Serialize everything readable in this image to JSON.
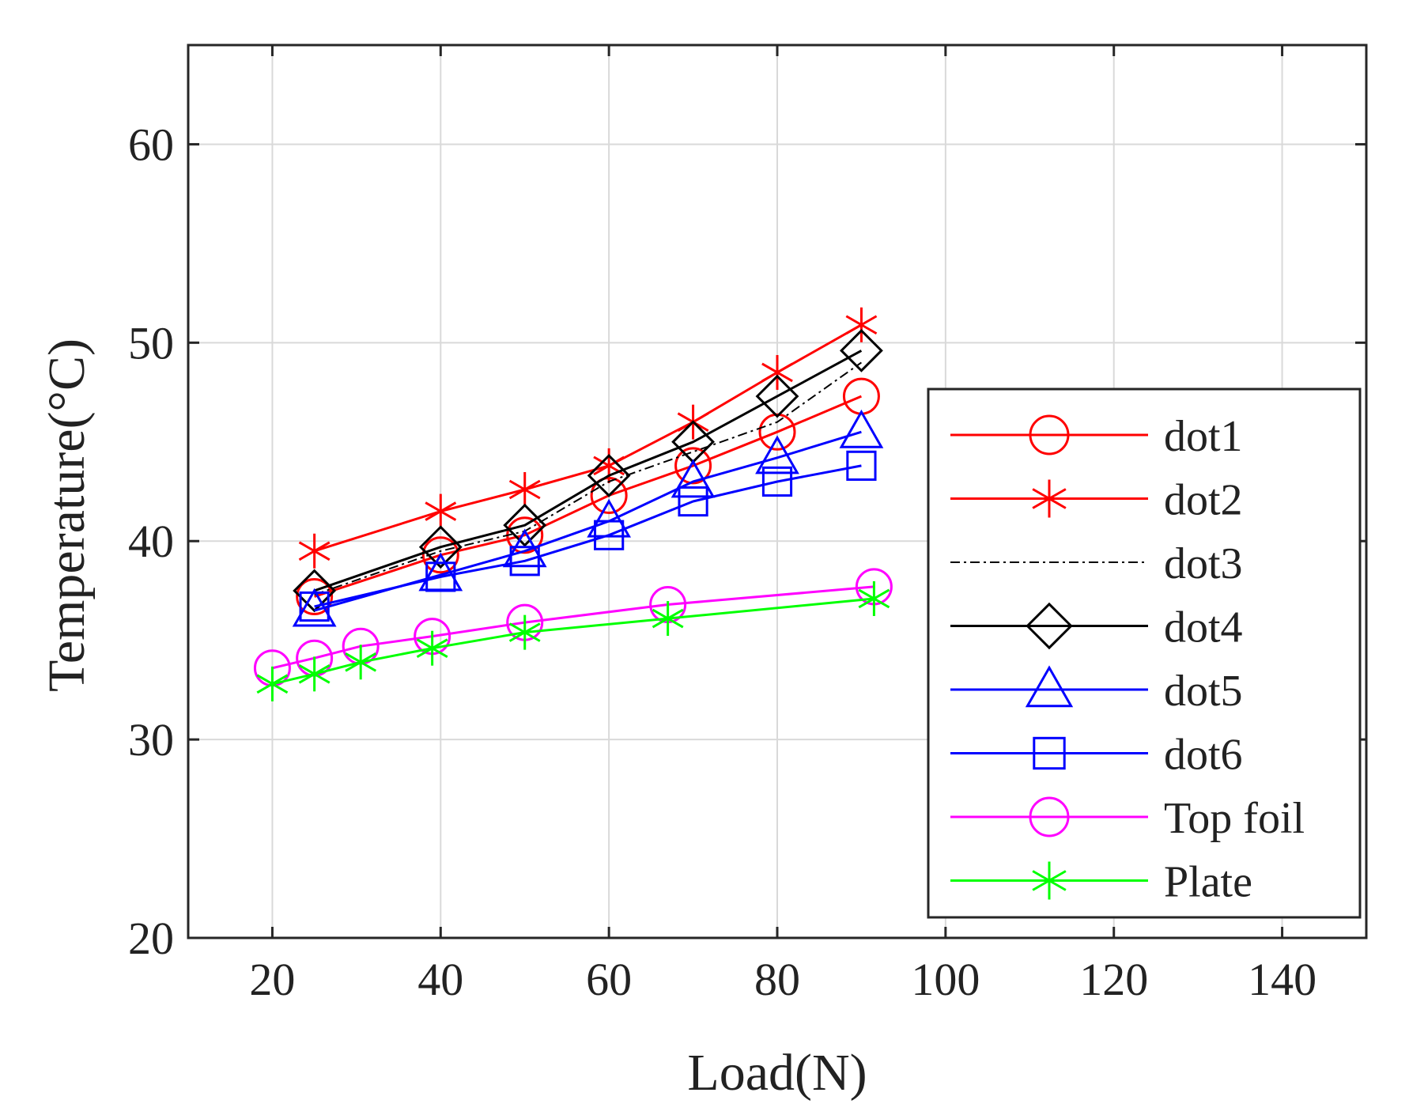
{
  "chart_data": {
    "type": "line",
    "title": "",
    "xlabel": "Load(N)",
    "ylabel": "Temperature(°C)",
    "xlim": [
      10,
      150
    ],
    "ylim": [
      20,
      65
    ],
    "xticks": [
      20,
      40,
      60,
      80,
      100,
      120,
      140
    ],
    "yticks": [
      20,
      30,
      40,
      50,
      60
    ],
    "grid": true,
    "legend_position": "right",
    "series": [
      {
        "name": "dot1",
        "color": "#ff0000",
        "line": "solid",
        "marker": "circle",
        "x": [
          25,
          40,
          50,
          60,
          70,
          80,
          90
        ],
        "y": [
          37.2,
          39.3,
          40.3,
          42.3,
          43.8,
          45.5,
          47.3
        ]
      },
      {
        "name": "dot2",
        "color": "#ff0000",
        "line": "solid",
        "marker": "asterisk",
        "x": [
          25,
          40,
          50,
          60,
          70,
          80,
          90
        ],
        "y": [
          39.5,
          41.5,
          42.6,
          43.8,
          46.0,
          48.5,
          50.9
        ]
      },
      {
        "name": "dot3",
        "color": "#000000",
        "line": "dashdot",
        "marker": "none",
        "x": [
          25,
          40,
          50,
          60,
          70,
          80,
          90
        ],
        "y": [
          37.3,
          39.5,
          40.5,
          43.0,
          44.5,
          46.0,
          49.0
        ]
      },
      {
        "name": "dot4",
        "color": "#000000",
        "line": "solid",
        "marker": "diamond",
        "x": [
          25,
          40,
          50,
          60,
          70,
          80,
          90
        ],
        "y": [
          37.5,
          39.7,
          40.8,
          43.3,
          45.0,
          47.3,
          49.6
        ]
      },
      {
        "name": "dot5",
        "color": "#0000ff",
        "line": "solid",
        "marker": "triangle",
        "x": [
          25,
          40,
          50,
          60,
          70,
          80,
          90
        ],
        "y": [
          36.5,
          38.3,
          39.5,
          41.0,
          43.0,
          44.2,
          45.5
        ]
      },
      {
        "name": "dot6",
        "color": "#0000ff",
        "line": "solid",
        "marker": "square",
        "x": [
          25,
          40,
          50,
          60,
          70,
          80,
          90
        ],
        "y": [
          36.7,
          38.2,
          39.0,
          40.3,
          42.0,
          43.0,
          43.8
        ]
      },
      {
        "name": "Top foil",
        "color": "#ff00ff",
        "line": "solid",
        "marker": "circle",
        "x": [
          20,
          25,
          30.5,
          39,
          50,
          67,
          91.5
        ],
        "y": [
          33.6,
          34.1,
          34.7,
          35.2,
          35.9,
          36.8,
          37.7
        ]
      },
      {
        "name": "Plate",
        "color": "#00ff00",
        "line": "solid",
        "marker": "asterisk",
        "x": [
          20,
          25,
          30.5,
          39,
          50,
          67,
          91.5
        ],
        "y": [
          32.8,
          33.3,
          33.9,
          34.6,
          35.4,
          36.1,
          37.1
        ]
      }
    ]
  }
}
